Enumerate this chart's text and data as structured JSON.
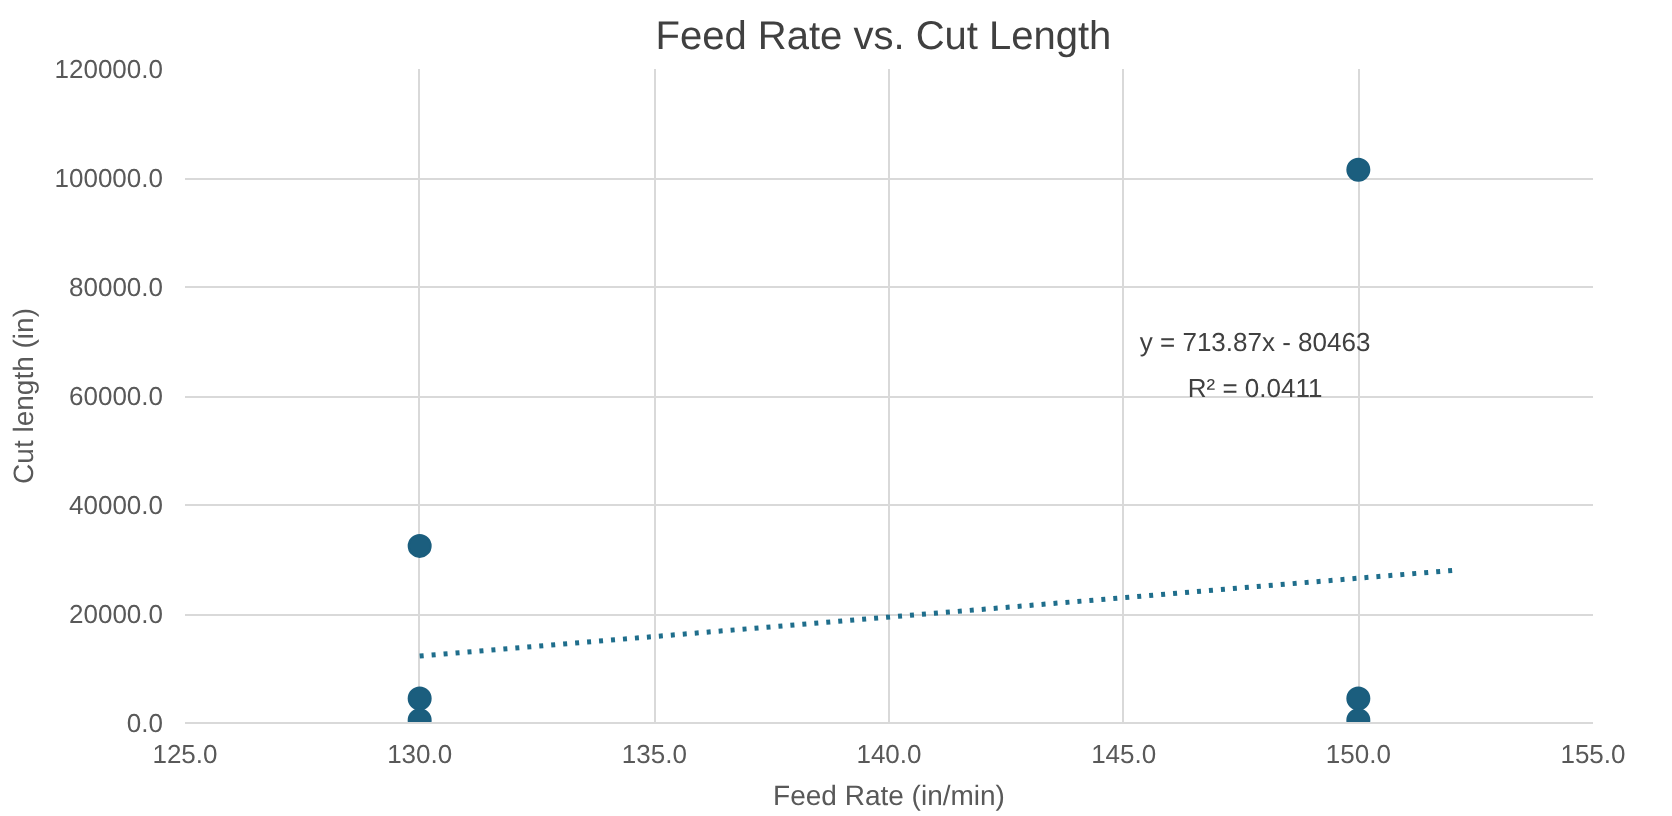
{
  "chart_data": {
    "type": "scatter",
    "title": "Feed  Rate vs. Cut Length",
    "xlabel": "Feed Rate (in/min)",
    "ylabel": "Cut length (in)",
    "xlim": [
      125,
      155
    ],
    "ylim": [
      0,
      120000
    ],
    "xticks": [
      {
        "value": 125,
        "label": "125.0"
      },
      {
        "value": 130,
        "label": "130.0"
      },
      {
        "value": 135,
        "label": "135.0"
      },
      {
        "value": 140,
        "label": "140.0"
      },
      {
        "value": 145,
        "label": "145.0"
      },
      {
        "value": 150,
        "label": "150.0"
      },
      {
        "value": 155,
        "label": "155.0"
      }
    ],
    "yticks": [
      {
        "value": 0,
        "label": "0.0"
      },
      {
        "value": 20000,
        "label": "20000.0"
      },
      {
        "value": 40000,
        "label": "40000.0"
      },
      {
        "value": 60000,
        "label": "60000.0"
      },
      {
        "value": 80000,
        "label": "80000.0"
      },
      {
        "value": 100000,
        "label": "100000.0"
      },
      {
        "value": 120000,
        "label": "120000.0"
      }
    ],
    "grid": true,
    "series": [
      {
        "color": "#1b5e7e",
        "marker": "circle",
        "x": [
          130,
          130,
          130,
          150,
          150,
          150
        ],
        "values": [
          32500,
          4500,
          500,
          101500,
          4500,
          500
        ]
      },
      {
        "type": "line",
        "color": "#1f6e8c",
        "marker": "none",
        "line_style": "dotted",
        "x": [
          130,
          152
        ],
        "values": [
          12300,
          28000
        ]
      }
    ],
    "annotations": [
      "y = 713.87x - 80463",
      "R² = 0.0411"
    ]
  }
}
